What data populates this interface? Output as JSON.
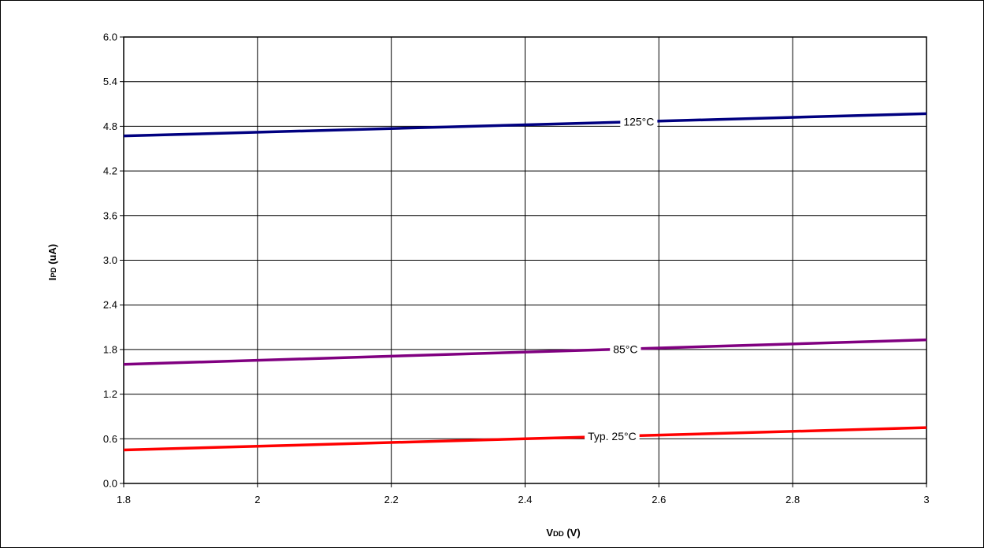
{
  "chart_data": {
    "type": "line",
    "xlabel": {
      "main": "V",
      "sub": "DD",
      "rest": " (V)"
    },
    "ylabel": {
      "main": "I",
      "sub": "PD",
      "rest": " (uA)"
    },
    "xlim": [
      1.8,
      3.0
    ],
    "ylim": [
      0.0,
      6.0
    ],
    "x_ticks": [
      "1.8",
      "2",
      "2.2",
      "2.4",
      "2.6",
      "2.8",
      "3"
    ],
    "y_ticks": [
      "0.0",
      "0.6",
      "1.2",
      "1.8",
      "2.4",
      "3.0",
      "3.6",
      "4.2",
      "4.8",
      "5.4",
      "6.0"
    ],
    "grid": true,
    "series": [
      {
        "name": "125°C",
        "color": "#000080",
        "x": [
          1.8,
          3.0
        ],
        "y": [
          4.67,
          4.97
        ],
        "label_at_x": 2.57
      },
      {
        "name": "85°C",
        "color": "#800080",
        "x": [
          1.8,
          3.0
        ],
        "y": [
          1.6,
          1.93
        ],
        "label_at_x": 2.55
      },
      {
        "name": "Typ. 25°C",
        "color": "#ff0000",
        "x": [
          1.8,
          3.0
        ],
        "y": [
          0.45,
          0.75
        ],
        "label_at_x": 2.53
      }
    ]
  }
}
